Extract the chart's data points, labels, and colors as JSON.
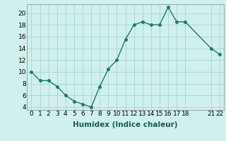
{
  "xlabel": "Humidex (Indice chaleur)",
  "x": [
    0,
    1,
    2,
    3,
    4,
    5,
    6,
    7,
    8,
    9,
    10,
    11,
    12,
    13,
    14,
    15,
    16,
    17,
    18,
    21,
    22
  ],
  "y": [
    10,
    8.5,
    8.5,
    7.5,
    6,
    5,
    4.5,
    4,
    7.5,
    10.5,
    12,
    15.5,
    18,
    18.5,
    18,
    18,
    21,
    18.5,
    18.5,
    14,
    13
  ],
  "line_color": "#1a7a6e",
  "marker": "o",
  "marker_size": 2.5,
  "bg_color": "#cff0ec",
  "grid_color": "#b0d8d2",
  "ylim": [
    3.5,
    21.5
  ],
  "xlim": [
    -0.5,
    22.5
  ],
  "yticks": [
    4,
    6,
    8,
    10,
    12,
    14,
    16,
    18,
    20
  ],
  "xticks": [
    0,
    1,
    2,
    3,
    4,
    5,
    6,
    7,
    8,
    9,
    10,
    11,
    12,
    13,
    14,
    15,
    16,
    17,
    18,
    21,
    22
  ],
  "xtick_labels": [
    "0",
    "1",
    "2",
    "3",
    "4",
    "5",
    "6",
    "7",
    "8",
    "9",
    "10",
    "11",
    "12",
    "13",
    "14",
    "15",
    "16",
    "17",
    "18",
    "21",
    "22"
  ],
  "tick_fontsize": 6.5,
  "label_fontsize": 7.5,
  "line_width": 1.0
}
